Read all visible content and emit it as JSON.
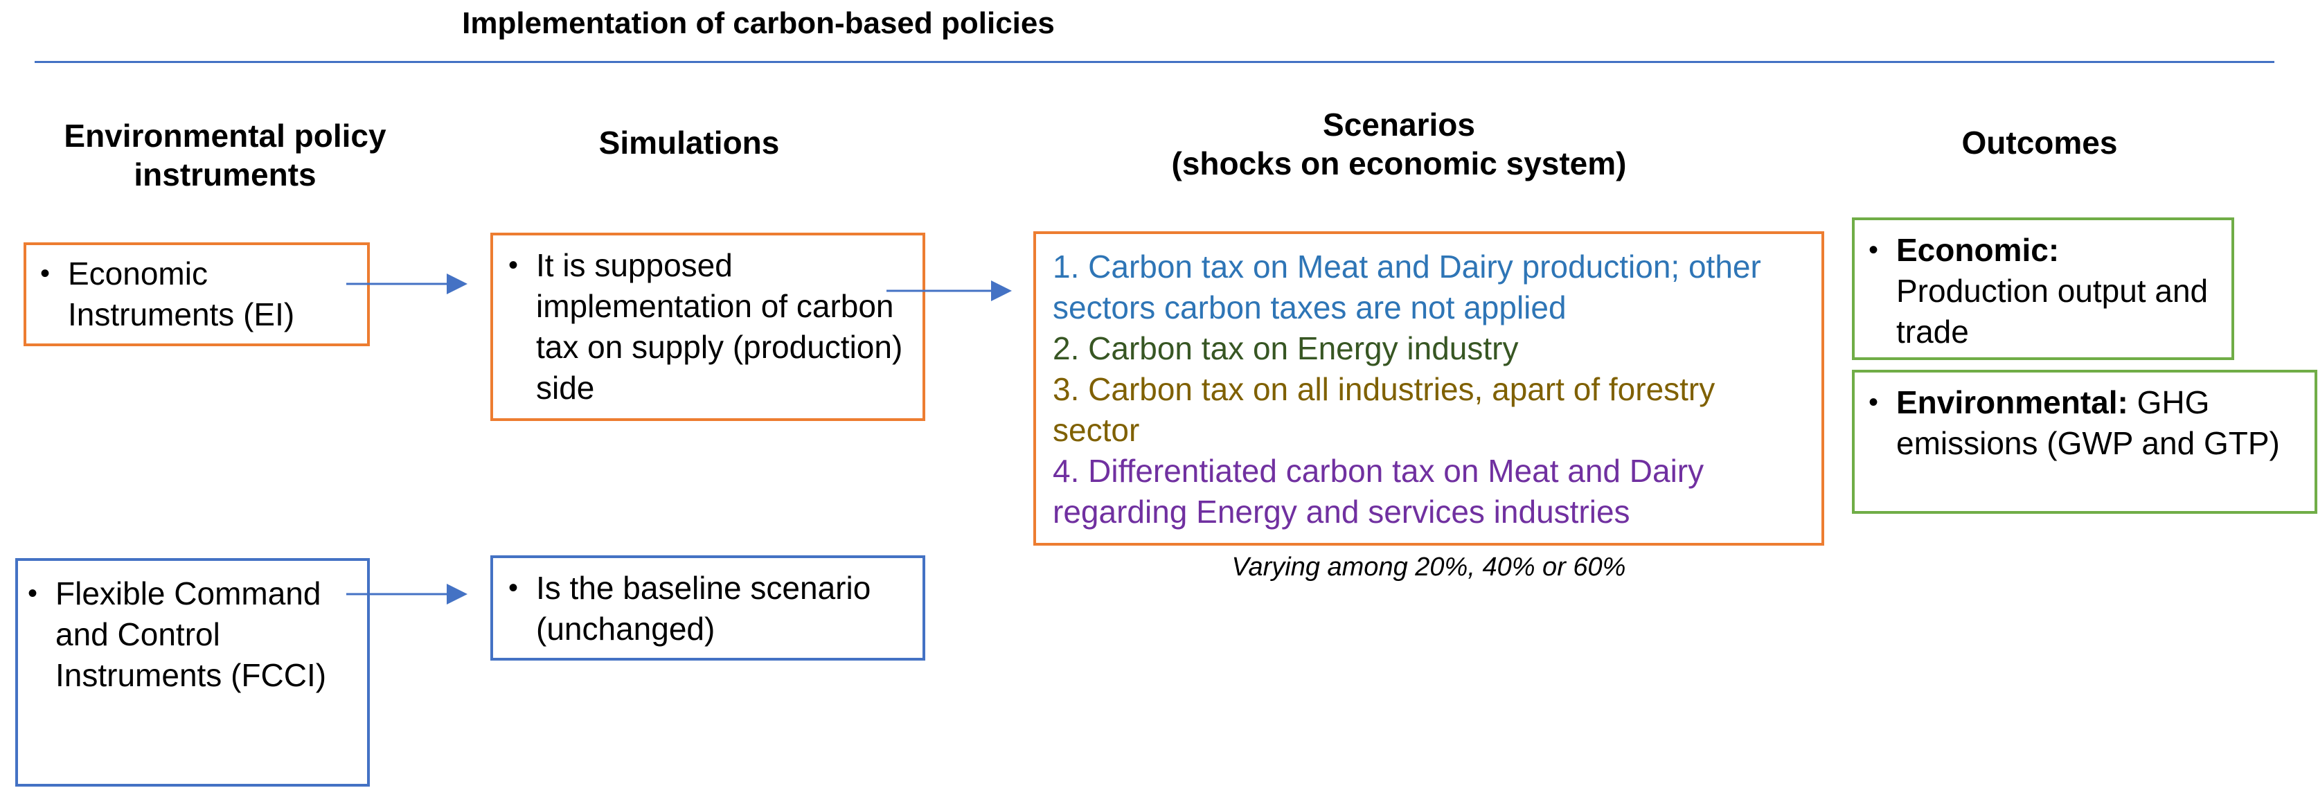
{
  "title": "Implementation of carbon-based policies",
  "headers": {
    "instruments": "Environmental policy instruments",
    "simulations": "Simulations",
    "scenarios_line1": "Scenarios",
    "scenarios_line2": "(shocks on economic system)",
    "outcomes": "Outcomes"
  },
  "instruments": {
    "economic": "Economic Instruments (EI)",
    "flexible": "Flexible Command and Control Instruments (FCCI)"
  },
  "simulations": {
    "economic": "It is supposed implementation of carbon tax on supply (production) side",
    "flexible": "Is the baseline scenario (unchanged)"
  },
  "scenarios": {
    "items": [
      {
        "text": "1. Carbon tax on Meat and Dairy production; other sectors carbon taxes are not applied",
        "color": "#2E75B6"
      },
      {
        "text": "2. Carbon tax on Energy industry",
        "color": "#375623"
      },
      {
        "text": "3. Carbon tax on all industries, apart of forestry sector",
        "color": "#7F6000"
      },
      {
        "text": "4. Differentiated carbon tax on Meat and Dairy regarding Energy and services industries",
        "color": "#7030A0"
      }
    ],
    "note": "Varying among 20%, 40% or 60%"
  },
  "outcomes": {
    "economic_label": "Economic:",
    "economic_text": "Production output and trade",
    "environmental_label": "Environmental:",
    "environmental_text": "GHG emissions (GWP and GTP)"
  },
  "colors": {
    "orange": "#ED7D31",
    "blue": "#4472C4",
    "green": "#70AD47",
    "arrow": "#4472C4"
  }
}
